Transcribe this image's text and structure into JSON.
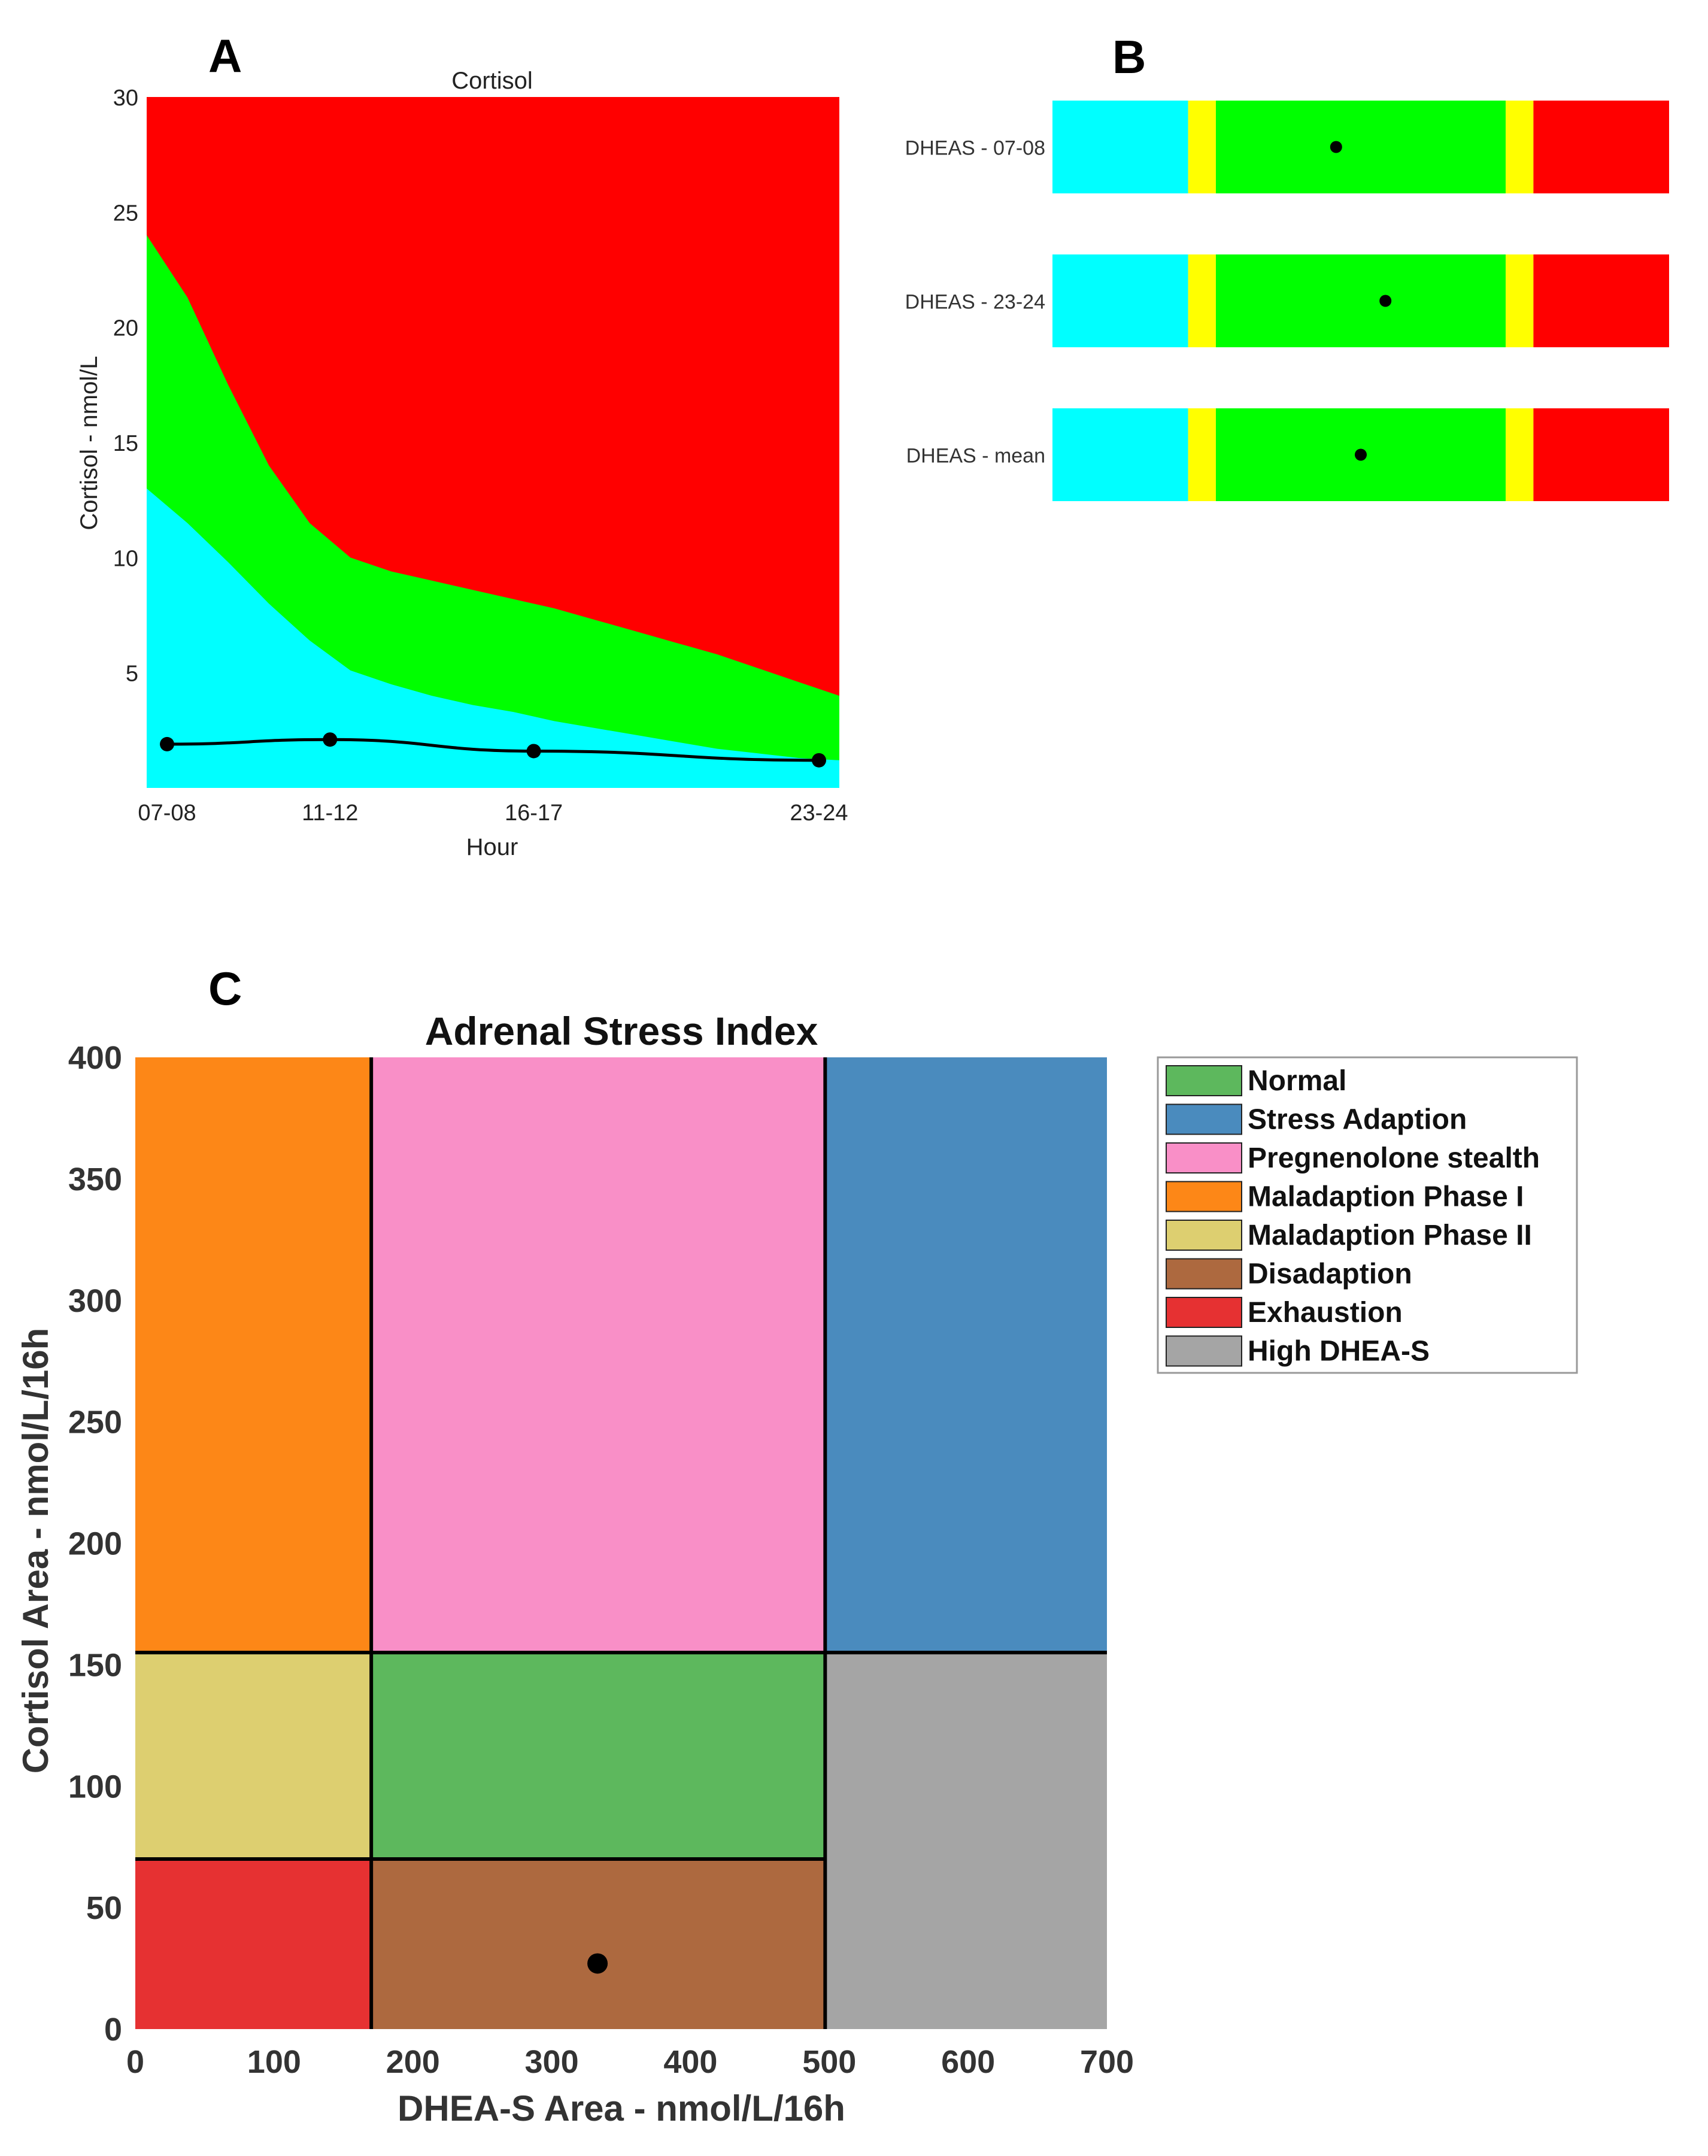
{
  "panels": {
    "a": "A",
    "b": "B",
    "c": "C"
  },
  "colors": {
    "cyan": "#00FFFF",
    "green": "#00FF00",
    "red": "#FF0000",
    "yellow": "#FFFF00",
    "normal": "#5DB85D",
    "stress_adaption": "#4A8BBE",
    "pregnenolone": "#F98FC7",
    "mal1": "#FD8717",
    "mal2": "#DDCF70",
    "disadaption": "#AD693F",
    "exhaustion": "#E63132",
    "high_dheas": "#A5A5A5",
    "point": "#000000"
  },
  "chart_data": [
    {
      "id": "A",
      "type": "area",
      "title": "Cortisol",
      "xlabel": "Hour",
      "ylabel": "Cortisol - nmol/L",
      "x": [
        7.5,
        11.5,
        16.5,
        23.5
      ],
      "x_tick_labels": [
        "07-08",
        "11-12",
        "16-17",
        "23-24"
      ],
      "xlim": [
        7.0,
        24.0
      ],
      "ylim": [
        0,
        30
      ],
      "y_ticks": [
        5,
        10,
        15,
        20,
        25,
        30
      ],
      "bands": {
        "x": [
          7,
          8,
          9,
          10,
          11,
          12,
          13,
          14,
          15,
          16,
          17,
          18,
          19,
          20,
          21,
          22,
          23,
          24
        ],
        "cyan_upper": [
          13.0,
          11.5,
          9.8,
          8.0,
          6.4,
          5.1,
          4.5,
          4.0,
          3.6,
          3.3,
          2.9,
          2.6,
          2.3,
          2.0,
          1.7,
          1.5,
          1.3,
          1.2
        ],
        "green_upper": [
          24.0,
          21.3,
          17.5,
          14.0,
          11.5,
          10.0,
          9.4,
          9.0,
          8.6,
          8.2,
          7.8,
          7.3,
          6.8,
          6.3,
          5.8,
          5.2,
          4.6,
          4.0
        ]
      },
      "series": [
        {
          "name": "Cortisol",
          "values": [
            1.9,
            2.1,
            1.6,
            1.2
          ]
        }
      ]
    },
    {
      "id": "B",
      "type": "bar",
      "scale_range": [
        0,
        100
      ],
      "zone_breaks": [
        22,
        26.5,
        73.5,
        78
      ],
      "zones": [
        "cyan",
        "yellow",
        "green",
        "yellow",
        "red"
      ],
      "rows": [
        {
          "label": "DHEAS - 07-08",
          "value": 46
        },
        {
          "label": "DHEAS - 23-24",
          "value": 54
        },
        {
          "label": "DHEAS - mean",
          "value": 50
        }
      ]
    },
    {
      "id": "C",
      "type": "heatmap",
      "title": "Adrenal Stress Index",
      "xlabel": "DHEA-S Area - nmol/L/16h",
      "ylabel": "Cortisol Area - nmol/L/16h",
      "xlim": [
        0,
        700
      ],
      "ylim": [
        0,
        400
      ],
      "x_ticks": [
        0,
        100,
        200,
        300,
        400,
        500,
        600,
        700
      ],
      "y_ticks": [
        0,
        50,
        100,
        150,
        200,
        250,
        300,
        350,
        400
      ],
      "regions": [
        {
          "name": "Maladaption Phase I",
          "color": "mal1",
          "x": [
            0,
            170
          ],
          "y": [
            155,
            400
          ]
        },
        {
          "name": "Pregnenolone stealth",
          "color": "pregnenolone",
          "x": [
            170,
            497
          ],
          "y": [
            155,
            400
          ]
        },
        {
          "name": "Stress Adaption",
          "color": "stress_adaption",
          "x": [
            497,
            700
          ],
          "y": [
            155,
            400
          ]
        },
        {
          "name": "Maladaption Phase II",
          "color": "mal2",
          "x": [
            0,
            170
          ],
          "y": [
            70,
            155
          ]
        },
        {
          "name": "Normal",
          "color": "normal",
          "x": [
            170,
            497
          ],
          "y": [
            70,
            155
          ]
        },
        {
          "name": "High DHEA-S",
          "color": "high_dheas",
          "x": [
            497,
            700
          ],
          "y": [
            0,
            155
          ]
        },
        {
          "name": "Exhaustion",
          "color": "exhaustion",
          "x": [
            0,
            170
          ],
          "y": [
            0,
            70
          ]
        },
        {
          "name": "Disadaption",
          "color": "disadaption",
          "x": [
            170,
            497
          ],
          "y": [
            0,
            70
          ]
        }
      ],
      "point": {
        "x": 333,
        "y": 27
      },
      "legend_placement": "right",
      "legend": [
        {
          "label": "Normal",
          "color": "normal"
        },
        {
          "label": "Stress Adaption",
          "color": "stress_adaption"
        },
        {
          "label": "Pregnenolone stealth",
          "color": "pregnenolone"
        },
        {
          "label": "Maladaption Phase I",
          "color": "mal1"
        },
        {
          "label": "Maladaption Phase II",
          "color": "mal2"
        },
        {
          "label": "Disadaption",
          "color": "disadaption"
        },
        {
          "label": "Exhaustion",
          "color": "exhaustion"
        },
        {
          "label": "High DHEA-S",
          "color": "high_dheas"
        }
      ]
    }
  ]
}
